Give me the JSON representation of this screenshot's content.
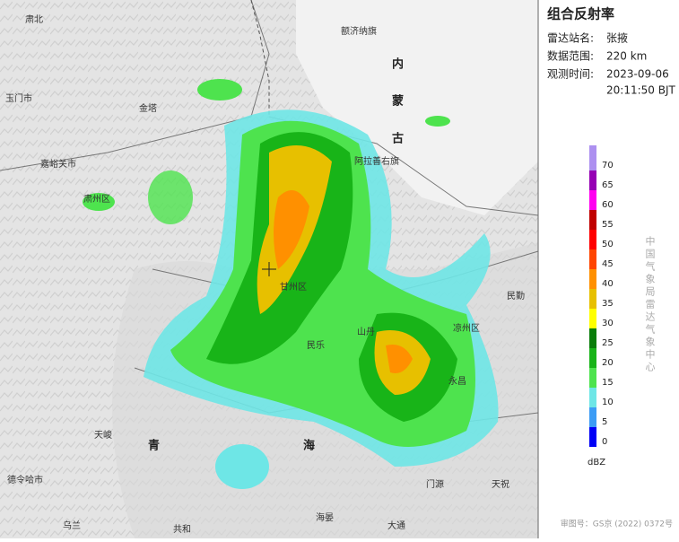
{
  "panel": {
    "title": "组合反射率",
    "rows": [
      {
        "label": "雷达站名:",
        "value": "张掖"
      },
      {
        "label": "数据范围:",
        "value": "220 km"
      },
      {
        "label": "观测时间:",
        "value": "2023-09-06"
      }
    ],
    "time_line2": "20:11:50 BJT"
  },
  "legend": {
    "ticks": [
      0,
      5,
      10,
      15,
      20,
      25,
      30,
      35,
      40,
      45,
      50,
      55,
      60,
      65,
      70
    ],
    "colors": [
      "#0000f6",
      "#3c9cf5",
      "#6ee6e6",
      "#4ee34e",
      "#18b418",
      "#0a7d0a",
      "#ffff00",
      "#e7c000",
      "#ff9000",
      "#ff4500",
      "#ff0000",
      "#c00000",
      "#ff00f0",
      "#9600b4",
      "#ad90f0"
    ],
    "unit": "dBZ",
    "source": "中国气象局雷达气象中心"
  },
  "map": {
    "labels": [
      "肃北",
      "玉门市",
      "金塔",
      "嘉峪关市",
      "肃州区",
      "额济纳旗",
      "内",
      "蒙",
      "古",
      "阿拉善右旗",
      "民勤",
      "凉州区",
      "甘州区",
      "山丹",
      "民乐",
      "永昌",
      "天峻",
      "青",
      "海",
      "德令哈市",
      "门源",
      "天祝",
      "共和",
      "海晏",
      "大通",
      "乌兰"
    ]
  },
  "footer": "审图号：GS京 (2022) 0372号"
}
